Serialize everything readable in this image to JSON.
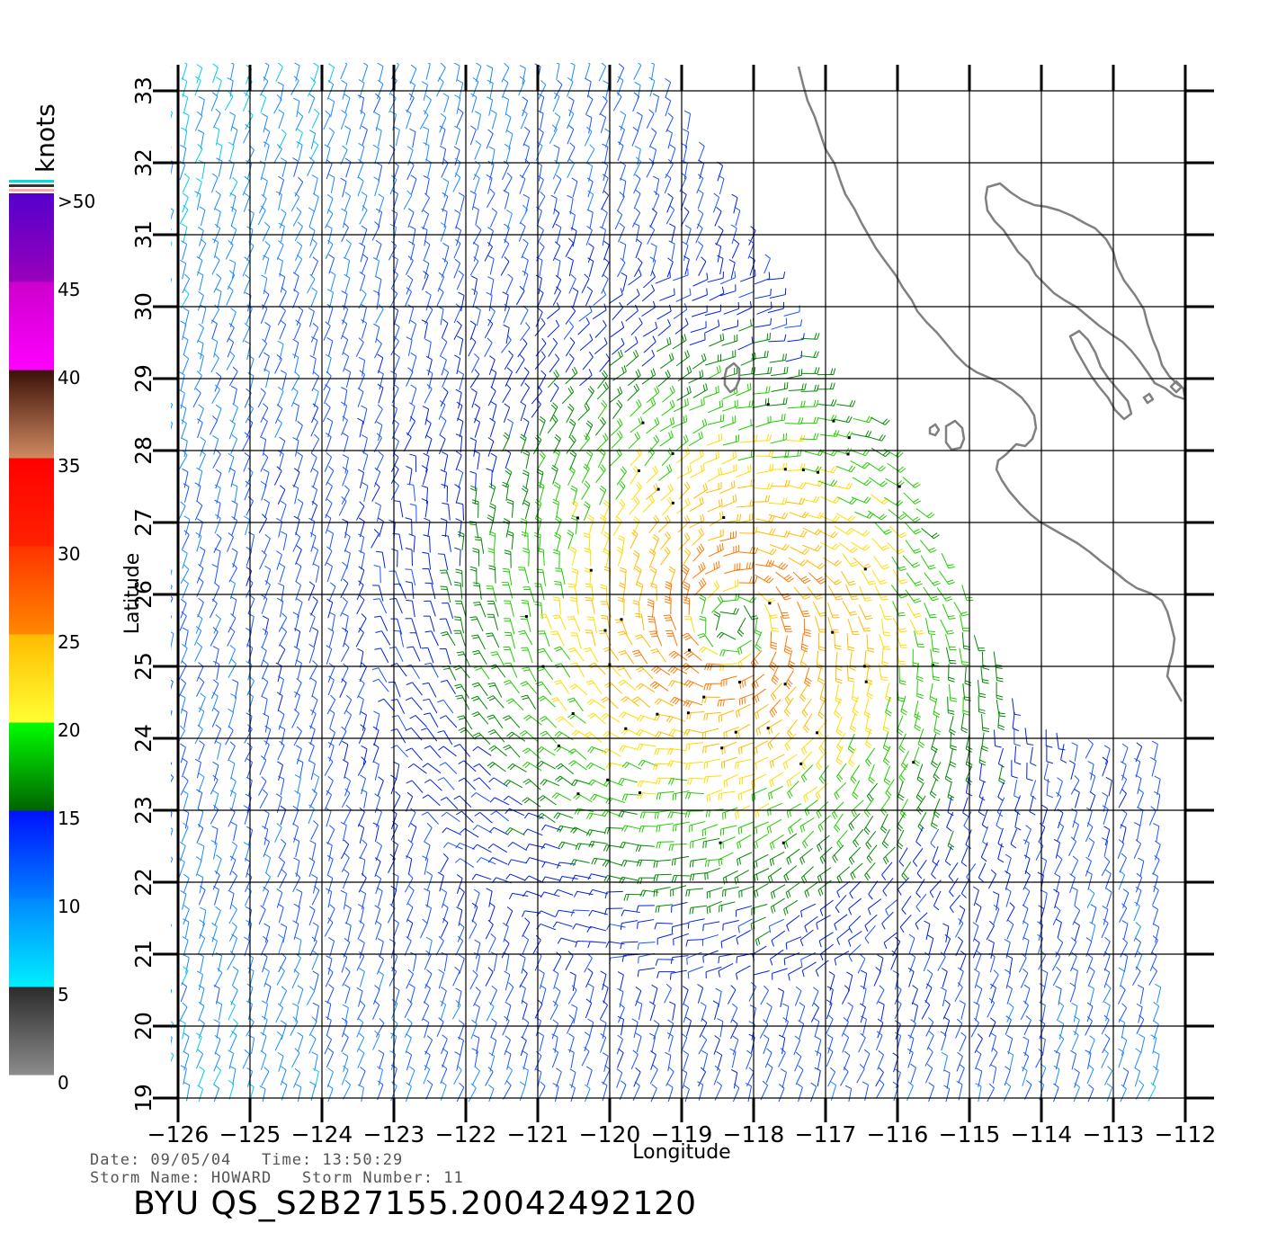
{
  "colorbar": {
    "unit_label": "knots",
    "tick_labels": [
      ">50",
      "45",
      "40",
      "35",
      "30",
      "25",
      "20",
      "15",
      "10",
      "5",
      "0"
    ],
    "segments": [
      {
        "from": 0,
        "to": 5,
        "colors": [
          "#8c8c8c",
          "#2b2b2b"
        ]
      },
      {
        "from": 5,
        "to": 10,
        "colors": [
          "#00eeff",
          "#0088ff"
        ]
      },
      {
        "from": 10,
        "to": 15,
        "colors": [
          "#0080ff",
          "#0010ff"
        ]
      },
      {
        "from": 15,
        "to": 20,
        "colors": [
          "#006400",
          "#00ff00"
        ]
      },
      {
        "from": 20,
        "to": 25,
        "colors": [
          "#ffff33",
          "#ffbb00"
        ]
      },
      {
        "from": 25,
        "to": 30,
        "colors": [
          "#ff8800",
          "#ff3300"
        ]
      },
      {
        "from": 30,
        "to": 35,
        "colors": [
          "#ff2200",
          "#ff0000"
        ]
      },
      {
        "from": 35,
        "to": 40,
        "colors": [
          "#d08a60",
          "#3a1008"
        ]
      },
      {
        "from": 40,
        "to": 45,
        "colors": [
          "#ff00ff",
          "#cc00cc"
        ]
      },
      {
        "from": 45,
        "to": 50,
        "colors": [
          "#9900bb",
          "#5500cc"
        ]
      }
    ]
  },
  "map": {
    "lon_range": [
      -126,
      -112
    ],
    "lat_range": [
      19,
      33
    ],
    "x_tick_labels": [
      "−126",
      "−125",
      "−124",
      "−123",
      "−122",
      "−121",
      "−120",
      "−119",
      "−118",
      "−117",
      "−116",
      "−115",
      "−114",
      "−113",
      "−112"
    ],
    "y_tick_labels": [
      "19",
      "20",
      "21",
      "22",
      "23",
      "24",
      "25",
      "26",
      "27",
      "28",
      "29",
      "30",
      "31",
      "32",
      "33"
    ],
    "xlabel": "Longitude",
    "ylabel": "Latitude",
    "storm_center": {
      "lon": -118.3,
      "lat": 25.6
    },
    "coastline_color": "#808080"
  },
  "footer": {
    "date_line": "Date: 09/05/04   Time: 13:50:29",
    "storm_line": "Storm Name: HOWARD   Storm Number: 11",
    "product_id": "BYU QS_S2B27155.20042492120"
  }
}
